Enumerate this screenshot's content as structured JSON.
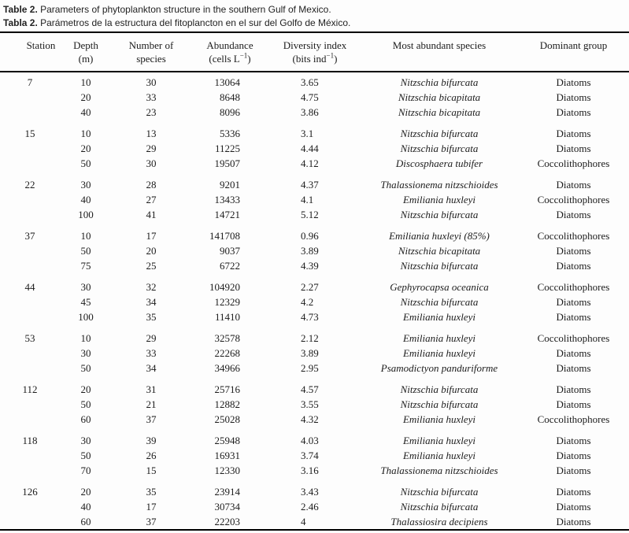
{
  "caption": {
    "en_label": "Table 2.",
    "en_text": " Parameters of phytoplankton structure in the southern Gulf of Mexico.",
    "es_label": "Tabla 2.",
    "es_text": " Parámetros de la estructura del fitoplancton en el sur del Golfo de México."
  },
  "table": {
    "columns": [
      {
        "key": "station",
        "line1": "Station"
      },
      {
        "key": "depth",
        "line1": "Depth",
        "line2": [
          {
            "t": "(m)"
          }
        ]
      },
      {
        "key": "species",
        "line1": "Number of",
        "line2": [
          {
            "t": "species"
          }
        ]
      },
      {
        "key": "abundance",
        "line1": "Abundance",
        "line2": [
          {
            "t": "(cells L"
          },
          {
            "t": "−1",
            "sup": true
          },
          {
            "t": ")"
          }
        ]
      },
      {
        "key": "diversity",
        "line1": "Diversity index",
        "line2": [
          {
            "t": "(bits ind"
          },
          {
            "t": "−1",
            "sup": true
          },
          {
            "t": ")"
          }
        ]
      },
      {
        "key": "species_name",
        "line1": "Most abundant species"
      },
      {
        "key": "dominant",
        "line1": "Dominant group"
      }
    ],
    "groups": [
      {
        "station": "7",
        "rows": [
          {
            "depth": "10",
            "num_species": "30",
            "abundance": "13064",
            "diversity": "3.65",
            "species": "Nitzschia bifurcata",
            "group": "Diatoms"
          },
          {
            "depth": "20",
            "num_species": "33",
            "abundance": "8648",
            "diversity": "4.75",
            "species": "Nitzschia bicapitata",
            "group": "Diatoms"
          },
          {
            "depth": "40",
            "num_species": "23",
            "abundance": "8096",
            "diversity": "3.86",
            "species": "Nitzschia bicapitata",
            "group": "Diatoms"
          }
        ]
      },
      {
        "station": "15",
        "rows": [
          {
            "depth": "10",
            "num_species": "13",
            "abundance": "5336",
            "diversity": "3.1",
            "species": "Nitzschia bifurcata",
            "group": "Diatoms"
          },
          {
            "depth": "20",
            "num_species": "29",
            "abundance": "11225",
            "diversity": "4.44",
            "species": "Nitzschia bifurcata",
            "group": "Diatoms"
          },
          {
            "depth": "50",
            "num_species": "30",
            "abundance": "19507",
            "diversity": "4.12",
            "species": "Discosphaera tubifer",
            "group": "Coccolithophores"
          }
        ]
      },
      {
        "station": "22",
        "rows": [
          {
            "depth": "30",
            "num_species": "28",
            "abundance": "9201",
            "diversity": "4.37",
            "species": "Thalassionema nitzschioides",
            "group": "Diatoms"
          },
          {
            "depth": "40",
            "num_species": "27",
            "abundance": "13433",
            "diversity": "4.1",
            "species": "Emiliania huxleyi",
            "group": "Coccolithophores"
          },
          {
            "depth": "100",
            "num_species": "41",
            "abundance": "14721",
            "diversity": "5.12",
            "species": "Nitzschia bifurcata",
            "group": "Diatoms"
          }
        ]
      },
      {
        "station": "37",
        "rows": [
          {
            "depth": "10",
            "num_species": "17",
            "abundance": "141708",
            "diversity": "0.96",
            "species": "Emiliania huxleyi (85%)",
            "group": "Coccolithophores"
          },
          {
            "depth": "50",
            "num_species": "20",
            "abundance": "9037",
            "diversity": "3.89",
            "species": "Nitzschia bicapitata",
            "group": "Diatoms"
          },
          {
            "depth": "75",
            "num_species": "25",
            "abundance": "6722",
            "diversity": "4.39",
            "species": "Nitzschia bifurcata",
            "group": "Diatoms"
          }
        ]
      },
      {
        "station": "44",
        "rows": [
          {
            "depth": "30",
            "num_species": "32",
            "abundance": "104920",
            "diversity": "2.27",
            "species": "Gephyrocapsa oceanica",
            "group": "Coccolithophores"
          },
          {
            "depth": "45",
            "num_species": "34",
            "abundance": "12329",
            "diversity": "4.2",
            "species": "Nitzschia bifurcata",
            "group": "Diatoms"
          },
          {
            "depth": "100",
            "num_species": "35",
            "abundance": "11410",
            "diversity": "4.73",
            "species": "Emiliania huxleyi",
            "group": "Diatoms"
          }
        ]
      },
      {
        "station": "53",
        "rows": [
          {
            "depth": "10",
            "num_species": "29",
            "abundance": "32578",
            "diversity": "2.12",
            "species": "Emiliania huxleyi",
            "group": "Coccolithophores"
          },
          {
            "depth": "30",
            "num_species": "33",
            "abundance": "22268",
            "diversity": "3.89",
            "species": "Emiliania huxleyi",
            "group": "Diatoms"
          },
          {
            "depth": "50",
            "num_species": "34",
            "abundance": "34966",
            "diversity": "2.95",
            "species": "Psamodictyon panduriforme",
            "group": "Diatoms"
          }
        ]
      },
      {
        "station": "112",
        "rows": [
          {
            "depth": "20",
            "num_species": "31",
            "abundance": "25716",
            "diversity": "4.57",
            "species": "Nitzschia bifurcata",
            "group": "Diatoms"
          },
          {
            "depth": "50",
            "num_species": "21",
            "abundance": "12882",
            "diversity": "3.55",
            "species": "Nitzschia bifurcata",
            "group": "Diatoms"
          },
          {
            "depth": "60",
            "num_species": "37",
            "abundance": "25028",
            "diversity": "4.32",
            "species": "Emiliania huxleyi",
            "group": "Coccolithophores"
          }
        ]
      },
      {
        "station": "118",
        "rows": [
          {
            "depth": "30",
            "num_species": "39",
            "abundance": "25948",
            "diversity": "4.03",
            "species": "Emiliania huxleyi",
            "group": "Diatoms"
          },
          {
            "depth": "50",
            "num_species": "26",
            "abundance": "16931",
            "diversity": "3.74",
            "species": "Emiliania huxleyi",
            "group": "Diatoms"
          },
          {
            "depth": "70",
            "num_species": "15",
            "abundance": "12330",
            "diversity": "3.16",
            "species": "Thalassionema nitzschioides",
            "group": "Diatoms"
          }
        ]
      },
      {
        "station": "126",
        "rows": [
          {
            "depth": "20",
            "num_species": "35",
            "abundance": "23914",
            "diversity": "3.43",
            "species": "Nitzschia bifurcata",
            "group": "Diatoms"
          },
          {
            "depth": "40",
            "num_species": "17",
            "abundance": "30734",
            "diversity": "2.46",
            "species": "Nitzschia bifurcata",
            "group": "Diatoms"
          },
          {
            "depth": "60",
            "num_species": "37",
            "abundance": "22203",
            "diversity": "4",
            "species": "Thalassiosira decipiens",
            "group": "Diatoms"
          }
        ]
      }
    ]
  }
}
